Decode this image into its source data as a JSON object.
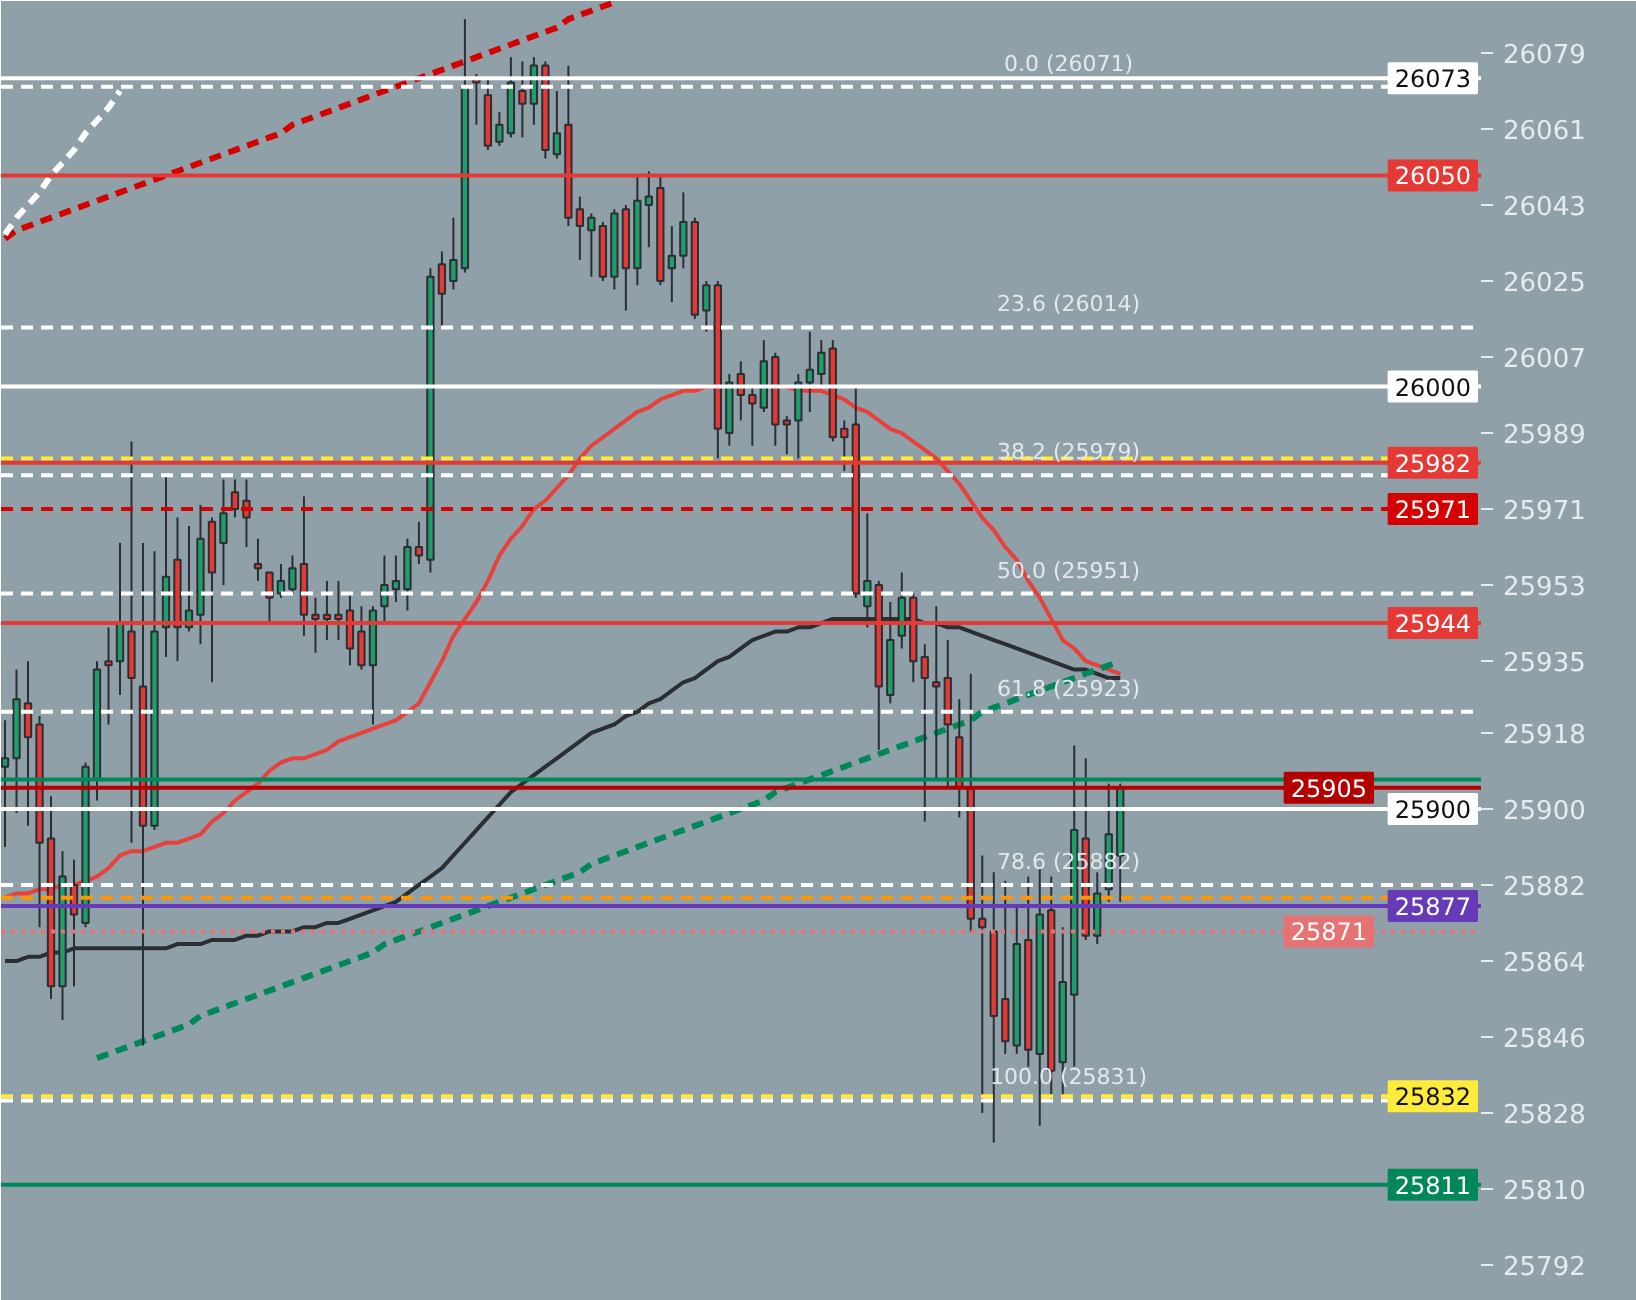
{
  "chart_data": {
    "type": "candlestick",
    "grid": false,
    "ylim": [
      25783.5,
      26091.3
    ],
    "yticks": [
      26079,
      26061,
      26043,
      26025,
      26007,
      25989,
      25971,
      25953,
      25935,
      25918,
      25900,
      25882,
      25864,
      25846,
      25828,
      25810,
      25792
    ],
    "categories": [
      null,
      null,
      null,
      null,
      null,
      null,
      null,
      null,
      null,
      null,
      null,
      null,
      null,
      null,
      null,
      null,
      null,
      null,
      null,
      null,
      null,
      null,
      null,
      null,
      null,
      null,
      null,
      null,
      null,
      null,
      null,
      null,
      null,
      null,
      null,
      null,
      null,
      null,
      null,
      null,
      null,
      null,
      null,
      null,
      null,
      null,
      null,
      null,
      null,
      null,
      null,
      null,
      null,
      null,
      null,
      null,
      null,
      null,
      null,
      null,
      null,
      null,
      null,
      null,
      null,
      null,
      null,
      null,
      null,
      null,
      null,
      null,
      null,
      null,
      null,
      null,
      null,
      null,
      null,
      null,
      null,
      null,
      null,
      null,
      null,
      null,
      null,
      null,
      null,
      null,
      null,
      null,
      null,
      null,
      null,
      null,
      null,
      null
    ],
    "ohlc": [
      [
        25910,
        25921,
        25891,
        25912
      ],
      [
        25912,
        25933,
        25899,
        25926
      ],
      [
        25925,
        25935,
        25896,
        25917
      ],
      [
        25920,
        25922,
        25872,
        25892
      ],
      [
        25893,
        25903,
        25855,
        25858
      ],
      [
        25858,
        25890,
        25850,
        25884
      ],
      [
        25882,
        25888,
        25858,
        25875
      ],
      [
        25873,
        25911,
        25872,
        25910
      ],
      [
        25907,
        25935,
        25902,
        25933
      ],
      [
        25935,
        25943,
        25920,
        25934
      ],
      [
        25935,
        25963,
        25927,
        25944
      ],
      [
        25942,
        25987,
        25892,
        25931
      ],
      [
        25929,
        25963,
        25844,
        25896
      ],
      [
        25896,
        25961,
        25895,
        25942
      ],
      [
        25943,
        25979,
        25936,
        25955
      ],
      [
        25959,
        25969,
        25935,
        25943
      ],
      [
        25943,
        25967,
        25942,
        25947
      ],
      [
        25946,
        25972,
        25939,
        25964
      ],
      [
        25968,
        25969,
        25930,
        25956
      ],
      [
        25963,
        25978,
        25953,
        25970
      ],
      [
        25975,
        25978,
        25969,
        25971
      ],
      [
        25973,
        25978,
        25962,
        25969
      ],
      [
        25958,
        25964,
        25954,
        25957
      ],
      [
        25956,
        25956,
        25944,
        25950
      ],
      [
        25951,
        25958,
        25950,
        25954
      ],
      [
        25952,
        25960,
        25951,
        25957
      ],
      [
        25958,
        25974,
        25941,
        25946
      ],
      [
        25946,
        25950,
        25937,
        25945
      ],
      [
        25946,
        25954,
        25940,
        25945
      ],
      [
        25946,
        25954,
        25940,
        25945
      ],
      [
        25947,
        25951,
        25934,
        25938
      ],
      [
        25942,
        25948,
        25933,
        25934
      ],
      [
        25934,
        25948,
        25920,
        25947
      ],
      [
        25948,
        25960,
        25944,
        25953
      ],
      [
        25952,
        25960,
        25949,
        25954
      ],
      [
        25952,
        25964,
        25947,
        25962
      ],
      [
        25962,
        25968,
        25958,
        25960
      ],
      [
        25959,
        26028,
        25956,
        26026
      ],
      [
        26029,
        26032,
        26014,
        26022
      ],
      [
        26025,
        26040,
        26023,
        26030
      ],
      [
        26028,
        26087,
        26027,
        26071
      ],
      [
        26073,
        26074,
        26062,
        26072
      ],
      [
        26069,
        26073,
        26056,
        26057
      ],
      [
        26058,
        26065,
        26057,
        26062
      ],
      [
        26060,
        26078,
        26059,
        26072
      ],
      [
        26070,
        26077,
        26059,
        26067
      ],
      [
        26067,
        26078,
        26062,
        26076
      ],
      [
        26076,
        26077,
        26054,
        26056
      ],
      [
        26055,
        26070,
        26054,
        26060
      ],
      [
        26062,
        26076,
        26038,
        26040
      ],
      [
        26042,
        26045,
        26030,
        26038
      ],
      [
        26037,
        26041,
        26026,
        26040
      ],
      [
        26038,
        26039,
        26025,
        26026
      ],
      [
        26026,
        26042,
        26023,
        26041
      ],
      [
        26042,
        26043,
        26018,
        26028
      ],
      [
        26028,
        26050,
        26024,
        26044
      ],
      [
        26043,
        26051,
        26033,
        26045
      ],
      [
        26047,
        26050,
        26024,
        26025
      ],
      [
        26028,
        26038,
        26020,
        26031
      ],
      [
        26031,
        26046,
        26028,
        26039
      ],
      [
        26039,
        26040,
        26016,
        26017
      ],
      [
        26018,
        26025,
        26013,
        26024
      ],
      [
        26024,
        26025,
        25983,
        25990
      ],
      [
        25989,
        26003,
        25986,
        26001
      ],
      [
        26003,
        26006,
        25992,
        25998
      ],
      [
        25998,
        26000,
        25986,
        25996
      ],
      [
        25995,
        26011,
        25994,
        26006
      ],
      [
        26007,
        26008,
        25986,
        25991
      ],
      [
        25992,
        25993,
        25984,
        25991
      ],
      [
        25992,
        26003,
        25983,
        26001
      ],
      [
        26001,
        26013,
        25994,
        26004
      ],
      [
        26003,
        26011,
        26000,
        26008
      ],
      [
        26009,
        26011,
        25987,
        25988
      ],
      [
        25990,
        25992,
        25980,
        25988
      ],
      [
        25991,
        26000,
        25950,
        25951
      ],
      [
        25948,
        25970,
        25943,
        25954
      ],
      [
        25953,
        25954,
        25914,
        25929
      ],
      [
        25927,
        25949,
        25925,
        25940
      ],
      [
        25941,
        25956,
        25938,
        25950
      ],
      [
        25950,
        25951,
        25930,
        25935
      ],
      [
        25936,
        25939,
        25897,
        25931
      ],
      [
        25930,
        25948,
        25907,
        25929
      ],
      [
        25931,
        25940,
        25905,
        25920
      ],
      [
        25917,
        25926,
        25898,
        25905
      ],
      [
        25905,
        25932,
        25871,
        25874
      ],
      [
        25874,
        25889,
        25828,
        25872
      ],
      [
        25871,
        25885,
        25821,
        25851
      ],
      [
        25855,
        25883,
        25842,
        25845
      ],
      [
        25844,
        25877,
        25842,
        25868
      ],
      [
        25869,
        25884,
        25839,
        25843
      ],
      [
        25842,
        25886,
        25825,
        25875
      ],
      [
        25876,
        25884,
        25831,
        25838
      ],
      [
        25840,
        25872,
        25832,
        25859
      ],
      [
        25856,
        25915,
        25839,
        25895
      ],
      [
        25893,
        25912,
        25869,
        25870
      ],
      [
        25870,
        25885,
        25868,
        25880
      ],
      [
        25881,
        25906,
        25878,
        25894
      ],
      [
        25889,
        25906,
        25878,
        25905
      ]
    ],
    "series": [
      {
        "type": "line",
        "color": "#e8413c",
        "values": [
          25879,
          25880,
          25880,
          25881,
          25881,
          25882,
          25882,
          25883,
          25884,
          25886,
          25889,
          25890,
          25890,
          25891,
          25892,
          25892,
          25893,
          25894,
          25897,
          25899,
          25902,
          25904,
          25906,
          25909,
          25911,
          25912,
          25912,
          25913,
          25914,
          25916,
          25917,
          25918,
          25919,
          25920,
          25921,
          25923,
          25925,
          25930,
          25935,
          25941,
          25945,
          25949,
          25954,
          25960,
          25964,
          25967,
          25971,
          25973,
          25976,
          25979,
          25983,
          25986,
          25988,
          25990,
          25992,
          25994,
          25995,
          25997,
          25998,
          25999,
          25999,
          26000,
          26000,
          null,
          null,
          null,
          null,
          26000,
          26000,
          25999,
          25999,
          25999,
          25998,
          25997,
          25995,
          25994,
          25992,
          25990,
          25989,
          25987,
          25985,
          25983,
          25980,
          25977,
          25973,
          25969,
          25966,
          25962,
          25959,
          25954,
          25950,
          25945,
          25940,
          25938,
          25935,
          25934,
          25933,
          25932
        ]
      },
      {
        "type": "line",
        "color": "#2b2f33",
        "values": [
          25864,
          25864,
          25865,
          25865,
          25866,
          25866,
          25867,
          25867,
          25867,
          25867,
          25867,
          25867,
          25867,
          25867,
          25867,
          25868,
          25868,
          25868,
          25869,
          25869,
          25869,
          25870,
          25870,
          25871,
          25871,
          25871,
          25872,
          25872,
          25873,
          25873,
          25874,
          25875,
          25876,
          25877,
          25878,
          25880,
          25882,
          25884,
          25886,
          25889,
          25892,
          25895,
          25898,
          25901,
          25904,
          25906,
          25908,
          25910,
          25912,
          25914,
          25916,
          25918,
          25919,
          25920,
          25922,
          25923,
          25925,
          25926,
          25928,
          25930,
          25931,
          25933,
          25935,
          25936,
          25938,
          25940,
          25941,
          25942,
          25942,
          25943,
          25943,
          25944,
          25945,
          25945,
          25945,
          25945,
          25945,
          25945,
          25945,
          25945,
          25944,
          25944,
          25943,
          25943,
          25942,
          25941,
          25940,
          25939,
          25938,
          25937,
          25936,
          25935,
          25934,
          25933,
          25933,
          25932,
          25931,
          25931
        ]
      },
      {
        "type": "line",
        "color": "#00875a",
        "line_style": "dashed",
        "values": [
          null,
          null,
          null,
          null,
          null,
          null,
          null,
          null,
          25841,
          25842,
          25843,
          25844,
          25845,
          25846,
          25847,
          25848,
          25849,
          25851,
          25852,
          25853,
          25854,
          25855,
          25856,
          25857,
          25858,
          25859,
          25860,
          25861,
          25862,
          25863,
          25864,
          25865,
          25866,
          25868,
          25869,
          25870,
          25871,
          25872,
          25873,
          25874,
          25875,
          25876,
          25877,
          25878,
          25879,
          25880,
          25881,
          25882,
          25883,
          25884,
          25885,
          25887,
          25888,
          25889,
          25890,
          25891,
          25892,
          25893,
          25894,
          25895,
          25896,
          25897,
          25898,
          25899,
          25900,
          25901,
          25902,
          25904,
          25905,
          25906,
          25907,
          25908,
          25909,
          25910,
          25911,
          25912,
          25913,
          25914,
          25915,
          25916,
          25917,
          25918,
          25919,
          25920,
          25921,
          25923,
          25924,
          25925,
          25926,
          25927,
          25928,
          25929,
          25930,
          25931,
          25932,
          25933,
          25934,
          25935
        ]
      },
      {
        "type": "line",
        "color": "#d50000",
        "line_style": "dashed",
        "values": [
          26035,
          26037,
          26038,
          26039,
          26040,
          26041,
          26042,
          26043,
          26044,
          26045,
          26046,
          26047,
          26048,
          26049,
          26050,
          26051,
          26052,
          26053,
          26054,
          26055,
          26056,
          26057,
          26058,
          26059,
          26060,
          26062,
          26063,
          26064,
          26065,
          26066,
          26067,
          26068,
          26069,
          26070,
          26071,
          26072,
          26073,
          26074,
          26075,
          26076,
          26077,
          26078,
          26079,
          26080,
          26081,
          26082,
          26083,
          26084,
          26085,
          26087,
          26088,
          26089,
          26090,
          26091,
          null,
          null,
          null,
          null,
          null,
          null,
          null,
          null,
          null,
          null,
          null,
          null,
          null,
          null,
          null,
          null,
          null,
          null,
          null,
          null,
          null,
          null,
          null,
          null,
          null,
          null,
          null,
          null,
          null,
          null,
          null,
          null,
          null,
          null,
          null,
          null,
          null,
          null,
          null,
          null,
          null,
          null,
          null,
          null
        ]
      },
      {
        "type": "line",
        "color": "#ffffff",
        "line_style": "dashed",
        "values": [
          26036,
          26040,
          26043,
          26046,
          26050,
          26053,
          26056,
          26060,
          26063,
          26066,
          26070,
          null,
          null,
          null,
          null,
          null,
          null,
          null,
          null,
          null,
          null,
          null,
          null,
          null,
          null,
          null,
          null,
          null,
          null,
          null,
          null,
          null,
          null,
          null,
          null,
          null,
          null,
          null,
          null,
          null,
          null,
          null,
          null,
          null,
          null,
          null,
          null,
          null,
          null,
          null,
          null,
          null,
          null,
          null,
          null,
          null,
          null,
          null,
          null,
          null,
          null,
          null,
          null,
          null,
          null,
          null,
          null,
          null,
          null,
          null,
          null,
          null,
          null,
          null,
          null,
          null,
          null,
          null,
          null,
          null,
          null,
          null,
          null,
          null,
          null,
          null,
          null,
          null,
          null,
          null,
          null,
          null,
          null,
          null,
          null,
          null,
          null,
          null
        ]
      }
    ],
    "ref_lines": [
      {
        "axis": "y",
        "value": 26071,
        "label": null,
        "color": "#ffffff",
        "line_style": "dashed"
      },
      {
        "axis": "y",
        "value": 26014,
        "label": null,
        "color": "#ffffff",
        "line_style": "dashed"
      },
      {
        "axis": "y",
        "value": 25979,
        "label": null,
        "color": "#ffffff",
        "line_style": "dashed"
      },
      {
        "axis": "y",
        "value": 25951,
        "label": null,
        "color": "#ffffff",
        "line_style": "dashed"
      },
      {
        "axis": "y",
        "value": 25923,
        "label": null,
        "color": "#ffffff",
        "line_style": "dashed"
      },
      {
        "axis": "y",
        "value": 25882,
        "label": null,
        "color": "#ffffff",
        "line_style": "dashed"
      },
      {
        "axis": "y",
        "value": 25831,
        "label": null,
        "color": "#ffffff",
        "line_style": "dashed"
      },
      {
        "axis": "y",
        "value": 26073,
        "label": "26073",
        "color": "#ffffff",
        "line_style": "solid"
      },
      {
        "axis": "y",
        "value": 26050,
        "label": "26050",
        "color": "#e53935",
        "line_style": "solid"
      },
      {
        "axis": "y",
        "value": 26000,
        "label": "26000",
        "color": "#ffffff",
        "line_style": "solid"
      },
      {
        "axis": "y",
        "value": 25983,
        "label": null,
        "color": "#ffeb3b",
        "line_style": "dashed"
      },
      {
        "axis": "y",
        "value": 25982,
        "label": "25982",
        "color": "#e53935",
        "line_style": "solid"
      },
      {
        "axis": "y",
        "value": 25971,
        "label": "25971",
        "color": "#d50000",
        "line_style": "dashed"
      },
      {
        "axis": "y",
        "value": 25944,
        "label": "25944",
        "color": "#e53935",
        "line_style": "solid"
      },
      {
        "axis": "y",
        "value": 25907,
        "label": null,
        "color": "#00875a",
        "line_style": "solid"
      },
      {
        "axis": "y",
        "value": 25900,
        "label": "25900",
        "color": "#ffffff",
        "line_style": "solid"
      },
      {
        "axis": "y",
        "value": 25905,
        "label": "25905",
        "color": "#b30000",
        "line_style": "solid"
      },
      {
        "axis": "y",
        "value": 25879,
        "label": null,
        "color": "#ff9800",
        "line_style": "dashed"
      },
      {
        "axis": "y",
        "value": 25877,
        "label": "25877",
        "color": "#673ab7",
        "line_style": "solid"
      },
      {
        "axis": "y",
        "value": 25871,
        "label": "25871",
        "color": "#e57373",
        "line_style": "dotted"
      },
      {
        "axis": "y",
        "value": 25832,
        "label": "25832",
        "color": "#ffeb3b",
        "line_style": "dashed"
      },
      {
        "axis": "y",
        "value": 25811,
        "label": "25811",
        "color": "#00875a",
        "line_style": "solid"
      }
    ],
    "annotations": [
      {
        "text": "0.0 (26071)",
        "y": 26071
      },
      {
        "text": "23.6 (26014)",
        "y": 26014
      },
      {
        "text": "38.2 (25979)",
        "y": 25979
      },
      {
        "text": "50.0 (25951)",
        "y": 25951
      },
      {
        "text": "61.8 (25923)",
        "y": 25923
      },
      {
        "text": "78.6 (25882)",
        "y": 25882
      },
      {
        "text": "100.0 (25831)",
        "y": 25831
      }
    ]
  }
}
